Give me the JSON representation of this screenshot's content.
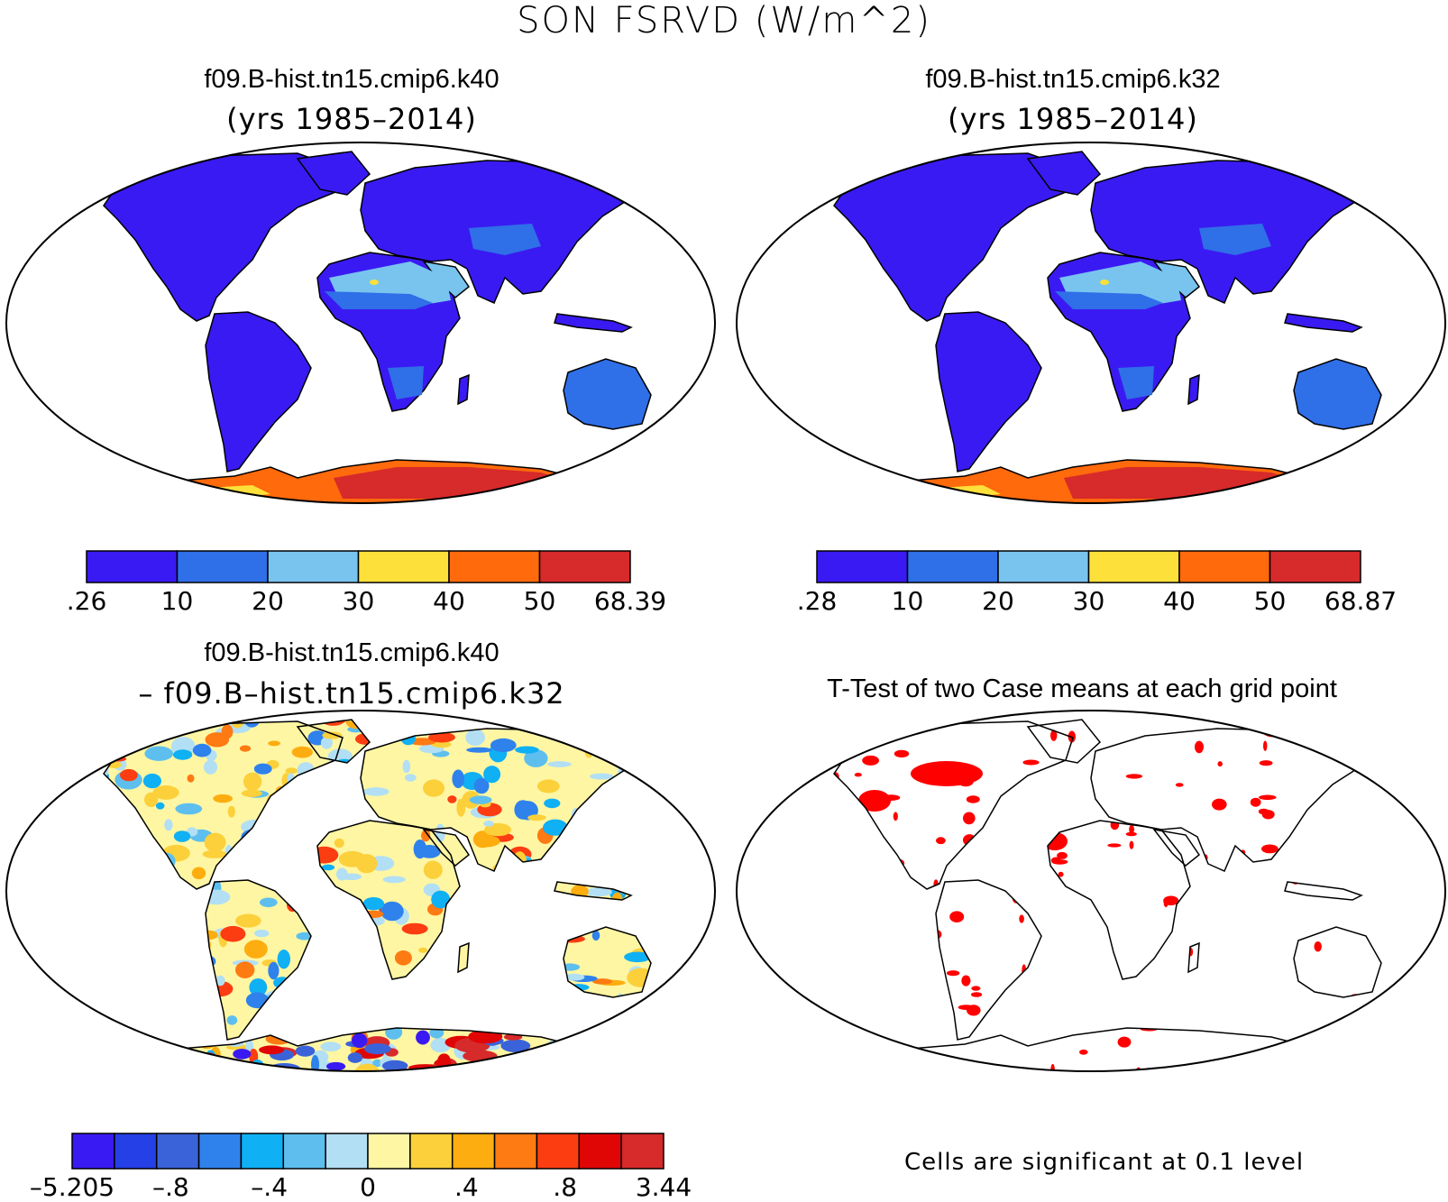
{
  "figure": {
    "title": "SON FSRVD (W/m^2)"
  },
  "panels": [
    {
      "id": "case1",
      "title": "f09.B-hist.tn15.cmip6.k40",
      "subtitle": "(yrs 1985–2014)",
      "colorbar": {
        "colors": [
          "#3a1af2",
          "#2f6fe8",
          "#78c4ef",
          "#fde03a",
          "#fe6a0c",
          "#d72a2a"
        ],
        "labels": [
          ".26",
          "10",
          "20",
          "30",
          "40",
          "50",
          "68.39"
        ]
      }
    },
    {
      "id": "case2",
      "title": "f09.B-hist.tn15.cmip6.k32",
      "subtitle": "(yrs 1985–2014)",
      "colorbar": {
        "colors": [
          "#3a1af2",
          "#2f6fe8",
          "#78c4ef",
          "#fde03a",
          "#fe6a0c",
          "#d72a2a"
        ],
        "labels": [
          ".28",
          "10",
          "20",
          "30",
          "40",
          "50",
          "68.87"
        ]
      }
    },
    {
      "id": "diff",
      "title": "f09.B-hist.tn15.cmip6.k40",
      "subtitle": "– f09.B–hist.tn15.cmip6.k32",
      "colorbar": {
        "colors": [
          "#3a1af2",
          "#2440e6",
          "#3b63d9",
          "#2f82ec",
          "#10b0f4",
          "#5ebfee",
          "#b2dff4",
          "#fff6a3",
          "#fbd03a",
          "#fdad0f",
          "#fe7a12",
          "#fc3d12",
          "#e00606",
          "#d72a2a"
        ],
        "labels": [
          "–5.205",
          "–.8",
          "–.4",
          "0",
          ".4",
          ".8",
          "3.44"
        ]
      }
    },
    {
      "id": "ttest",
      "title": "T-Test of two Case means at each grid point",
      "note": "Cells are significant at 0.1 level"
    }
  ]
}
